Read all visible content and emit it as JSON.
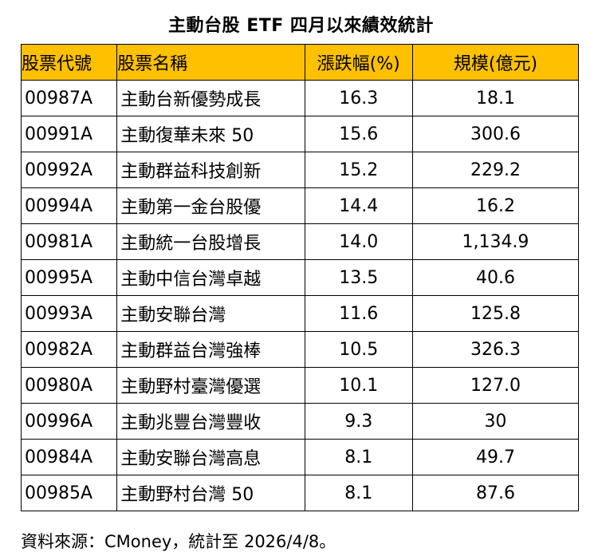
{
  "title": "主動台股 ETF 四月以來績效統計",
  "table": {
    "headers": [
      "股票代號",
      "股票名稱",
      "漲跌幅(%)",
      "規模(億元)"
    ],
    "header_color": "#ffc000",
    "rows": [
      [
        "00987A",
        "主動台新優勢成長",
        "16.3",
        "18.1"
      ],
      [
        "00991A",
        "主動復華未來 50",
        "15.6",
        "300.6"
      ],
      [
        "00992A",
        "主動群益科技創新",
        "15.2",
        "229.2"
      ],
      [
        "00994A",
        "主動第一金台股優",
        "14.4",
        "16.2"
      ],
      [
        "00981A",
        "主動統一台股增長",
        "14.0",
        "1,134.9"
      ],
      [
        "00995A",
        "主動中信台灣卓越",
        "13.5",
        "40.6"
      ],
      [
        "00993A",
        "主動安聯台灣",
        "11.6",
        "125.8"
      ],
      [
        "00982A",
        "主動群益台灣強棒",
        "10.5",
        "326.3"
      ],
      [
        "00980A",
        "主動野村臺灣優選",
        "10.1",
        "127.0"
      ],
      [
        "00996A",
        "主動兆豐台灣豐收",
        "9.3",
        "30"
      ],
      [
        "00984A",
        "主動安聯台灣高息",
        "8.1",
        "49.7"
      ],
      [
        "00985A",
        "主動野村台灣 50",
        "8.1",
        "87.6"
      ]
    ]
  },
  "source": "資料來源：CMoney，統計至 2026/4/8。"
}
